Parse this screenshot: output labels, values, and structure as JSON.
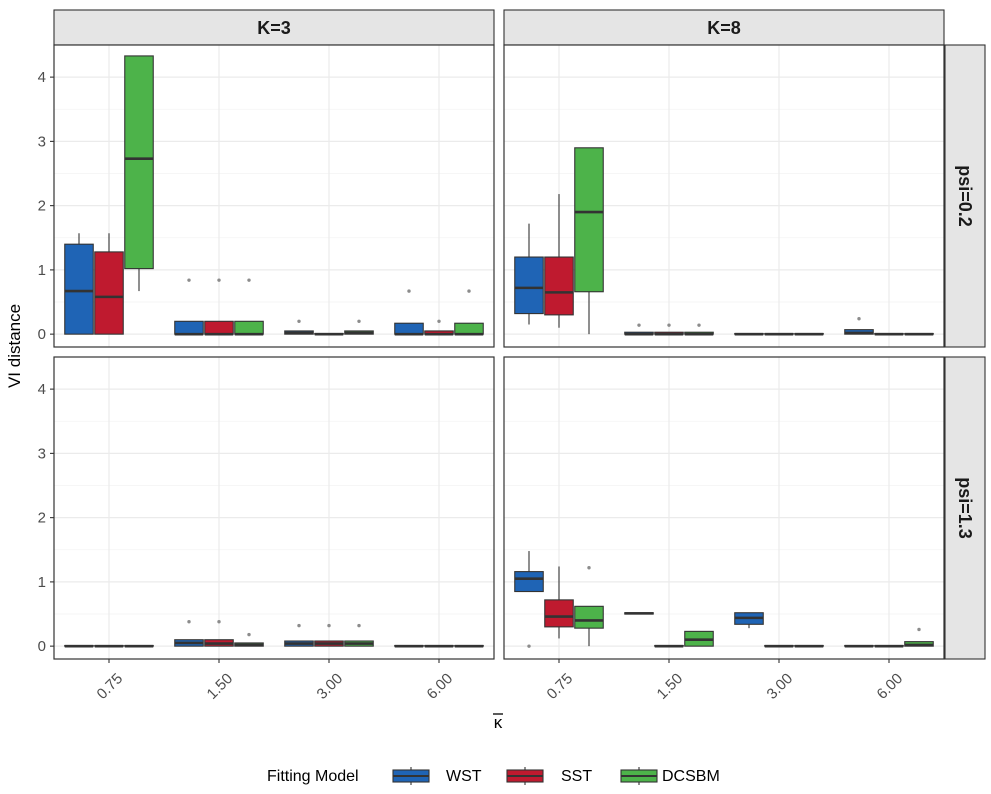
{
  "chart_data": {
    "type": "boxplot",
    "title": "",
    "xlabel": "κ",
    "xlabel_overline": true,
    "ylabel": "VI distance",
    "ylim": [
      -0.2,
      4.5
    ],
    "yticks": [
      0,
      1,
      2,
      3,
      4
    ],
    "categories": [
      "0.75",
      "1.50",
      "3.00",
      "6.00"
    ],
    "columns": [
      "K=3",
      "K=8"
    ],
    "rows": [
      "psi=0.2",
      "psi=1.3"
    ],
    "legend": {
      "title": "Fitting Model",
      "position": "bottom",
      "entries": [
        "WST",
        "SST",
        "DCSBM"
      ]
    },
    "series_colors": {
      "WST": "#1f64b5",
      "SST": "#bf1a2f",
      "DCSBM": "#4db34a"
    },
    "grid": true,
    "facets": [
      {
        "column": "K=3",
        "row": "psi=0.2",
        "boxes": [
          {
            "category": "0.75",
            "model": "WST",
            "min": 0,
            "q1": 0,
            "median": 0.67,
            "q3": 1.4,
            "max": 1.57,
            "outliers": []
          },
          {
            "category": "0.75",
            "model": "SST",
            "min": 0,
            "q1": 0,
            "median": 0.58,
            "q3": 1.28,
            "max": 1.57,
            "outliers": []
          },
          {
            "category": "0.75",
            "model": "DCSBM",
            "min": 0.67,
            "q1": 1.02,
            "median": 2.73,
            "q3": 4.33,
            "max": 4.33,
            "outliers": []
          },
          {
            "category": "1.50",
            "model": "WST",
            "min": 0,
            "q1": 0,
            "median": 0,
            "q3": 0.2,
            "max": 0.2,
            "outliers": [
              0.84
            ]
          },
          {
            "category": "1.50",
            "model": "SST",
            "min": 0,
            "q1": 0,
            "median": 0,
            "q3": 0.2,
            "max": 0.2,
            "outliers": [
              0.84
            ]
          },
          {
            "category": "1.50",
            "model": "DCSBM",
            "min": 0,
            "q1": 0,
            "median": 0,
            "q3": 0.2,
            "max": 0.2,
            "outliers": [
              0.84
            ]
          },
          {
            "category": "3.00",
            "model": "WST",
            "min": 0,
            "q1": 0,
            "median": 0.02,
            "q3": 0.05,
            "max": 0.05,
            "outliers": [
              0.2
            ]
          },
          {
            "category": "3.00",
            "model": "SST",
            "min": 0,
            "q1": 0,
            "median": 0,
            "q3": 0.01,
            "max": 0.01,
            "outliers": []
          },
          {
            "category": "3.00",
            "model": "DCSBM",
            "min": 0,
            "q1": 0,
            "median": 0.02,
            "q3": 0.05,
            "max": 0.05,
            "outliers": [
              0.2
            ]
          },
          {
            "category": "6.00",
            "model": "WST",
            "min": 0,
            "q1": 0,
            "median": 0,
            "q3": 0.17,
            "max": 0.17,
            "outliers": [
              0.67
            ]
          },
          {
            "category": "6.00",
            "model": "SST",
            "min": 0,
            "q1": 0,
            "median": 0,
            "q3": 0.05,
            "max": 0.05,
            "outliers": [
              0.2
            ]
          },
          {
            "category": "6.00",
            "model": "DCSBM",
            "min": 0,
            "q1": 0,
            "median": 0,
            "q3": 0.17,
            "max": 0.17,
            "outliers": [
              0.67
            ]
          }
        ]
      },
      {
        "column": "K=8",
        "row": "psi=0.2",
        "boxes": [
          {
            "category": "0.75",
            "model": "WST",
            "min": 0.15,
            "q1": 0.32,
            "median": 0.72,
            "q3": 1.2,
            "max": 1.72,
            "outliers": []
          },
          {
            "category": "0.75",
            "model": "SST",
            "min": 0.1,
            "q1": 0.3,
            "median": 0.65,
            "q3": 1.2,
            "max": 2.18,
            "outliers": []
          },
          {
            "category": "0.75",
            "model": "DCSBM",
            "min": 0,
            "q1": 0.66,
            "median": 1.9,
            "q3": 2.9,
            "max": 2.9,
            "outliers": []
          },
          {
            "category": "1.50",
            "model": "WST",
            "min": 0,
            "q1": 0,
            "median": 0,
            "q3": 0.03,
            "max": 0.03,
            "outliers": [
              0.14
            ]
          },
          {
            "category": "1.50",
            "model": "SST",
            "min": 0,
            "q1": 0,
            "median": 0,
            "q3": 0.03,
            "max": 0.03,
            "outliers": [
              0.14
            ]
          },
          {
            "category": "1.50",
            "model": "DCSBM",
            "min": 0,
            "q1": 0,
            "median": 0,
            "q3": 0.03,
            "max": 0.03,
            "outliers": [
              0.14
            ]
          },
          {
            "category": "3.00",
            "model": "WST",
            "min": 0,
            "q1": 0,
            "median": 0,
            "q3": 0.01,
            "max": 0.01,
            "outliers": []
          },
          {
            "category": "3.00",
            "model": "SST",
            "min": 0,
            "q1": 0,
            "median": 0,
            "q3": 0.01,
            "max": 0.01,
            "outliers": []
          },
          {
            "category": "3.00",
            "model": "DCSBM",
            "min": 0,
            "q1": 0,
            "median": 0,
            "q3": 0.01,
            "max": 0.01,
            "outliers": []
          },
          {
            "category": "6.00",
            "model": "WST",
            "min": 0,
            "q1": 0,
            "median": 0.02,
            "q3": 0.07,
            "max": 0.07,
            "outliers": [
              0.24
            ]
          },
          {
            "category": "6.00",
            "model": "SST",
            "min": 0,
            "q1": 0,
            "median": 0,
            "q3": 0.01,
            "max": 0.01,
            "outliers": []
          },
          {
            "category": "6.00",
            "model": "DCSBM",
            "min": 0,
            "q1": 0,
            "median": 0,
            "q3": 0.01,
            "max": 0.01,
            "outliers": []
          }
        ]
      },
      {
        "column": "K=3",
        "row": "psi=1.3",
        "boxes": [
          {
            "category": "0.75",
            "model": "WST",
            "min": 0,
            "q1": 0,
            "median": 0,
            "q3": 0.01,
            "max": 0.01,
            "outliers": []
          },
          {
            "category": "0.75",
            "model": "SST",
            "min": 0,
            "q1": 0,
            "median": 0,
            "q3": 0.01,
            "max": 0.01,
            "outliers": []
          },
          {
            "category": "0.75",
            "model": "DCSBM",
            "min": 0,
            "q1": 0,
            "median": 0,
            "q3": 0.01,
            "max": 0.01,
            "outliers": []
          },
          {
            "category": "1.50",
            "model": "WST",
            "min": 0,
            "q1": 0,
            "median": 0.05,
            "q3": 0.1,
            "max": 0.1,
            "outliers": [
              0.38
            ]
          },
          {
            "category": "1.50",
            "model": "SST",
            "min": 0,
            "q1": 0,
            "median": 0.04,
            "q3": 0.1,
            "max": 0.1,
            "outliers": [
              0.38
            ]
          },
          {
            "category": "1.50",
            "model": "DCSBM",
            "min": 0,
            "q1": 0,
            "median": 0.02,
            "q3": 0.05,
            "max": 0.05,
            "outliers": [
              0.18
            ]
          },
          {
            "category": "3.00",
            "model": "WST",
            "min": 0,
            "q1": 0,
            "median": 0.04,
            "q3": 0.08,
            "max": 0.08,
            "outliers": [
              0.32
            ]
          },
          {
            "category": "3.00",
            "model": "SST",
            "min": 0,
            "q1": 0,
            "median": 0.04,
            "q3": 0.08,
            "max": 0.08,
            "outliers": [
              0.32
            ]
          },
          {
            "category": "3.00",
            "model": "DCSBM",
            "min": 0,
            "q1": 0,
            "median": 0.04,
            "q3": 0.08,
            "max": 0.08,
            "outliers": [
              0.32
            ]
          },
          {
            "category": "6.00",
            "model": "WST",
            "min": 0,
            "q1": 0,
            "median": 0,
            "q3": 0.01,
            "max": 0.01,
            "outliers": []
          },
          {
            "category": "6.00",
            "model": "SST",
            "min": 0,
            "q1": 0,
            "median": 0,
            "q3": 0.01,
            "max": 0.01,
            "outliers": []
          },
          {
            "category": "6.00",
            "model": "DCSBM",
            "min": 0,
            "q1": 0,
            "median": 0,
            "q3": 0.01,
            "max": 0.01,
            "outliers": []
          }
        ]
      },
      {
        "column": "K=8",
        "row": "psi=1.3",
        "boxes": [
          {
            "category": "0.75",
            "model": "WST",
            "min": 0.85,
            "q1": 0.85,
            "median": 1.05,
            "q3": 1.16,
            "max": 1.48,
            "outliers": [
              0
            ]
          },
          {
            "category": "0.75",
            "model": "SST",
            "min": 0.12,
            "q1": 0.3,
            "median": 0.46,
            "q3": 0.72,
            "max": 1.24,
            "outliers": []
          },
          {
            "category": "0.75",
            "model": "DCSBM",
            "min": 0,
            "q1": 0.28,
            "median": 0.4,
            "q3": 0.62,
            "max": 0.62,
            "outliers": [
              1.22
            ]
          },
          {
            "category": "1.50",
            "model": "WST",
            "min": 0.5,
            "q1": 0.5,
            "median": 0.51,
            "q3": 0.52,
            "max": 0.52,
            "outliers": []
          },
          {
            "category": "1.50",
            "model": "SST",
            "min": 0,
            "q1": 0,
            "median": 0,
            "q3": 0.01,
            "max": 0.01,
            "outliers": []
          },
          {
            "category": "1.50",
            "model": "DCSBM",
            "min": 0,
            "q1": 0,
            "median": 0.1,
            "q3": 0.23,
            "max": 0.23,
            "outliers": []
          },
          {
            "category": "3.00",
            "model": "WST",
            "min": 0.28,
            "q1": 0.34,
            "median": 0.44,
            "q3": 0.52,
            "max": 0.52,
            "outliers": []
          },
          {
            "category": "3.00",
            "model": "SST",
            "min": 0,
            "q1": 0,
            "median": 0,
            "q3": 0.01,
            "max": 0.01,
            "outliers": []
          },
          {
            "category": "3.00",
            "model": "DCSBM",
            "min": 0,
            "q1": 0,
            "median": 0,
            "q3": 0.01,
            "max": 0.01,
            "outliers": []
          },
          {
            "category": "6.00",
            "model": "WST",
            "min": 0,
            "q1": 0,
            "median": 0,
            "q3": 0.01,
            "max": 0.01,
            "outliers": []
          },
          {
            "category": "6.00",
            "model": "SST",
            "min": 0,
            "q1": 0,
            "median": 0,
            "q3": 0.01,
            "max": 0.01,
            "outliers": []
          },
          {
            "category": "6.00",
            "model": "DCSBM",
            "min": 0,
            "q1": 0,
            "median": 0.02,
            "q3": 0.07,
            "max": 0.07,
            "outliers": [
              0.26
            ]
          }
        ]
      }
    ]
  }
}
